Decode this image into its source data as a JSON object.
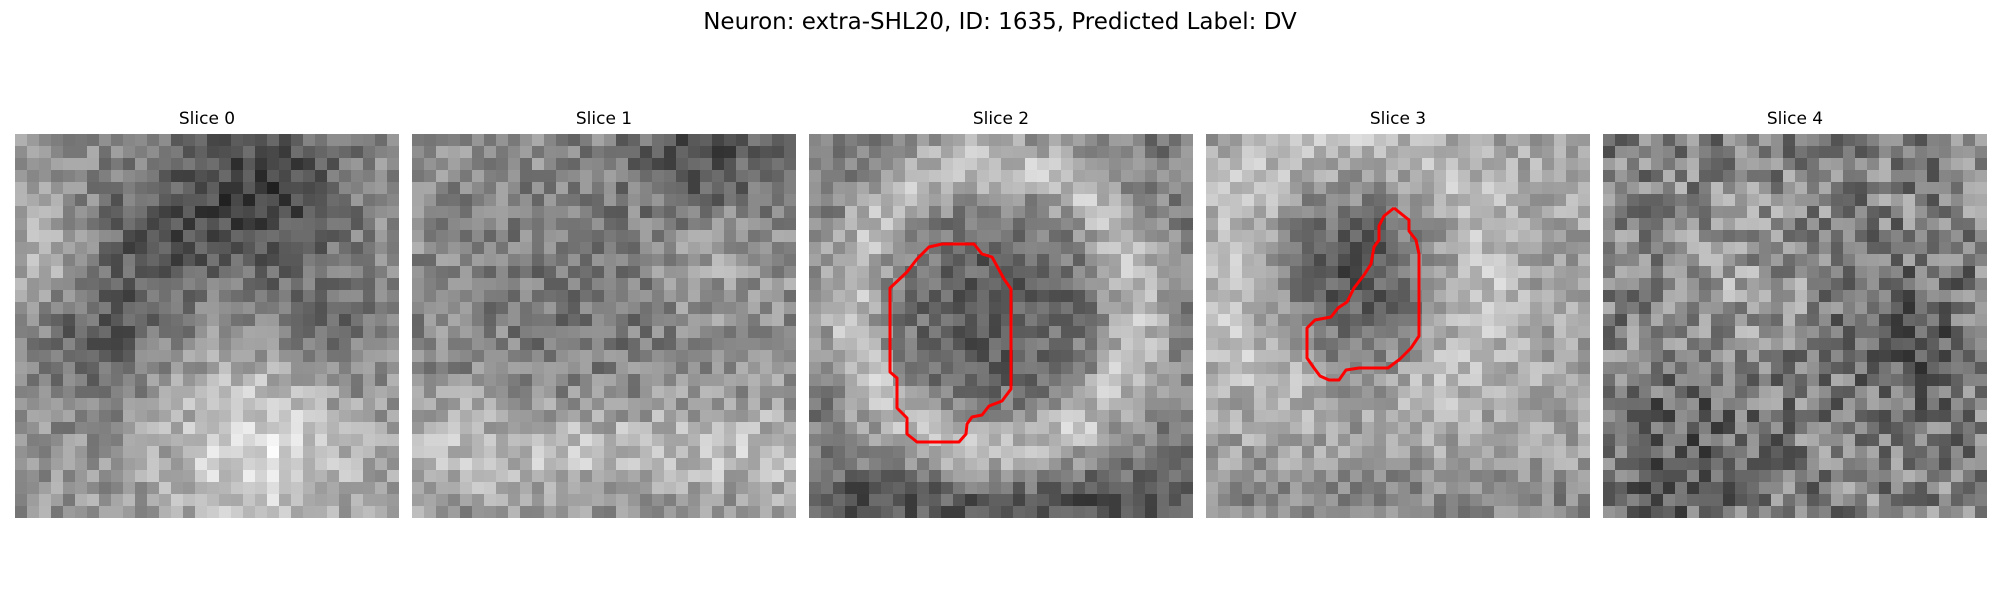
{
  "figure": {
    "suptitle": "Neuron: extra-SHL20, ID: 1635, Predicted Label: DV"
  },
  "slices": [
    {
      "title": "Slice 0",
      "has_contour": false
    },
    {
      "title": "Slice 1",
      "has_contour": false
    },
    {
      "title": "Slice 2",
      "has_contour": true
    },
    {
      "title": "Slice 3",
      "has_contour": true
    },
    {
      "title": "Slice 4",
      "has_contour": false
    }
  ],
  "colors": {
    "contour": "#ff0000",
    "background": "#ffffff",
    "text": "#000000"
  }
}
